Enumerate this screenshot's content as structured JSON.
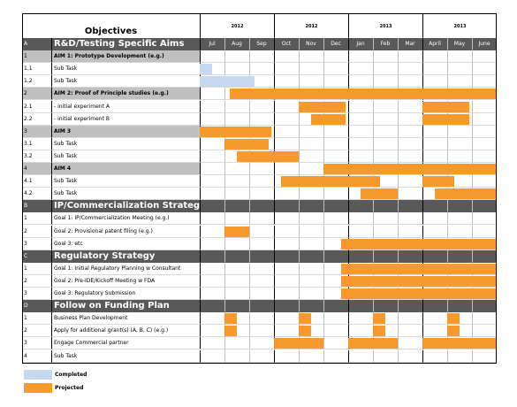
{
  "header": {
    "objectives_label": "Objectives",
    "quarters": [
      "2012",
      "2012",
      "2013",
      "2013"
    ],
    "months": [
      "Jul",
      "Aug",
      "Sep",
      "Oct",
      "Nov",
      "Dec",
      "Jan",
      "Feb",
      "Mar",
      "April",
      "May",
      "June"
    ]
  },
  "colors": {
    "completed": "#c6d9f0",
    "projected": "#f79a2d",
    "section_bg": "#595959",
    "aim_bg": "#c0c0c0",
    "grid": "#bfbfbf"
  },
  "rows": [
    {
      "id": "A",
      "label": "R&D/Testing Specific Aims",
      "kind": "section",
      "bars": []
    },
    {
      "id": "1",
      "label": "AIM 1: Prototype Development (e.g.)",
      "kind": "aim",
      "bars": []
    },
    {
      "id": "1.1",
      "label": "Sub Task",
      "kind": "task",
      "bars": [
        {
          "s": 0,
          "e": 0.5,
          "t": "completed"
        }
      ]
    },
    {
      "id": "1.2",
      "label": "Sub Task",
      "kind": "task",
      "bars": [
        {
          "s": 0,
          "e": 2.2,
          "t": "completed"
        }
      ]
    },
    {
      "id": "2",
      "label": "AIM 2: Proof of Principle studies (e.g.)",
      "kind": "aim",
      "bars": [
        {
          "s": 1.2,
          "e": 12,
          "t": "projected"
        }
      ]
    },
    {
      "id": "2.1",
      "label": "- initial experiment A",
      "kind": "task",
      "bars": [
        {
          "s": 4,
          "e": 5.9,
          "t": "projected"
        },
        {
          "s": 9,
          "e": 10.9,
          "t": "projected"
        }
      ]
    },
    {
      "id": "2.2",
      "label": "- initial experiment B",
      "kind": "task",
      "bars": [
        {
          "s": 4.5,
          "e": 5.9,
          "t": "projected"
        },
        {
          "s": 9,
          "e": 10.9,
          "t": "projected"
        }
      ]
    },
    {
      "id": "3",
      "label": "AIM 3",
      "kind": "aim",
      "bars": [
        {
          "s": 0,
          "e": 2.9,
          "t": "projected"
        }
      ]
    },
    {
      "id": "3.1",
      "label": "Sub Task",
      "kind": "task",
      "bars": [
        {
          "s": 1,
          "e": 2.8,
          "t": "projected"
        }
      ]
    },
    {
      "id": "3.2",
      "label": "Sub Task",
      "kind": "task",
      "bars": [
        {
          "s": 1.5,
          "e": 4,
          "t": "projected"
        }
      ]
    },
    {
      "id": "4",
      "label": "AIM 4",
      "kind": "aim",
      "bars": [
        {
          "s": 5,
          "e": 12,
          "t": "projected"
        }
      ]
    },
    {
      "id": "4.1",
      "label": "Sub Task",
      "kind": "task",
      "bars": [
        {
          "s": 3.3,
          "e": 7.3,
          "t": "projected"
        },
        {
          "s": 9,
          "e": 10.3,
          "t": "projected"
        }
      ]
    },
    {
      "id": "4.2",
      "label": "Sub Task",
      "kind": "task",
      "bars": [
        {
          "s": 6.5,
          "e": 8,
          "t": "projected"
        },
        {
          "s": 9.5,
          "e": 12,
          "t": "projected"
        }
      ]
    },
    {
      "id": "B",
      "label": "IP/Commercialization Strategy",
      "kind": "section",
      "bars": []
    },
    {
      "id": "1",
      "label": "Goal 1: IP/Commercialization Meeting (e.g.)",
      "kind": "task",
      "bars": []
    },
    {
      "id": "2",
      "label": "Goal 2: Provisional patent filing (e.g.)",
      "kind": "task",
      "bars": [
        {
          "s": 1,
          "e": 2,
          "t": "projected"
        }
      ]
    },
    {
      "id": "3",
      "label": "Goal 3: etc",
      "kind": "task",
      "bars": [
        {
          "s": 5.7,
          "e": 12,
          "t": "projected"
        }
      ]
    },
    {
      "id": "C",
      "label": "Regulatory Strategy",
      "kind": "section",
      "bars": []
    },
    {
      "id": "1",
      "label": "Goal 1: Initial Regulatory Planning w Consultant",
      "kind": "task",
      "bars": [
        {
          "s": 5.7,
          "e": 12,
          "t": "projected"
        }
      ]
    },
    {
      "id": "2",
      "label": "Goal 2: Pre-IDE/Kickoff Meeting w FDA",
      "kind": "task",
      "bars": [
        {
          "s": 5.7,
          "e": 12,
          "t": "projected"
        }
      ]
    },
    {
      "id": "3",
      "label": "Goal 3: Regulatory Submission",
      "kind": "task",
      "bars": [
        {
          "s": 5.7,
          "e": 12,
          "t": "projected"
        }
      ]
    },
    {
      "id": "D",
      "label": "Follow on Funding Plan",
      "kind": "section",
      "bars": []
    },
    {
      "id": "1",
      "label": "Business Plan Development",
      "kind": "task",
      "bars": [
        {
          "s": 1,
          "e": 1.5,
          "t": "projected"
        },
        {
          "s": 4,
          "e": 4.5,
          "t": "projected"
        },
        {
          "s": 7,
          "e": 7.5,
          "t": "projected"
        },
        {
          "s": 10,
          "e": 10.5,
          "t": "projected"
        }
      ]
    },
    {
      "id": "2",
      "label": "Apply for additional grant(s) (A, B, C) (e.g.)",
      "kind": "task",
      "bars": [
        {
          "s": 1,
          "e": 1.5,
          "t": "projected"
        },
        {
          "s": 4,
          "e": 4.5,
          "t": "projected"
        },
        {
          "s": 7,
          "e": 7.5,
          "t": "projected"
        },
        {
          "s": 10,
          "e": 10.5,
          "t": "projected"
        }
      ]
    },
    {
      "id": "3",
      "label": "Engage Commercial partner",
      "kind": "task",
      "bars": [
        {
          "s": 3,
          "e": 5,
          "t": "projected"
        },
        {
          "s": 6,
          "e": 8,
          "t": "projected"
        },
        {
          "s": 9,
          "e": 12,
          "t": "projected"
        }
      ]
    },
    {
      "id": "4",
      "label": "Sub Task",
      "kind": "task",
      "bars": []
    }
  ],
  "legend": [
    {
      "label": "Completed",
      "type": "completed"
    },
    {
      "label": "Projected",
      "type": "projected"
    }
  ]
}
